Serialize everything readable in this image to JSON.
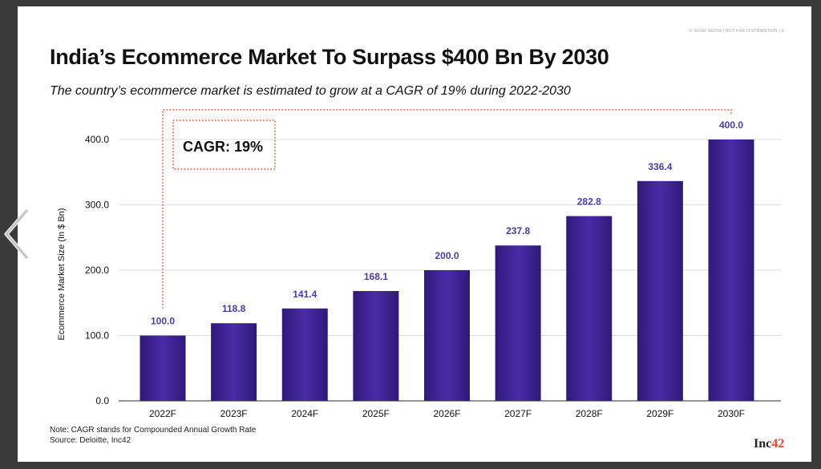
{
  "header": {
    "watermark": "© INC42 MEDIA | NOT FOR DISTRIBUTION | 8",
    "title": "India’s Ecommerce Market To Surpass $400 Bn By 2030",
    "subtitle": "The country’s ecommerce market is estimated to grow at a CAGR of 19% during 2022-2030"
  },
  "chart_data": {
    "type": "bar",
    "categories": [
      "2022F",
      "2023F",
      "2024F",
      "2025F",
      "2026F",
      "2027F",
      "2028F",
      "2029F",
      "2030F"
    ],
    "values": [
      100.0,
      118.8,
      141.4,
      168.1,
      200.0,
      237.8,
      282.8,
      336.4,
      400.0
    ],
    "value_labels": [
      "100.0",
      "118.8",
      "141.4",
      "168.1",
      "200.0",
      "237.8",
      "282.8",
      "336.4",
      "400.0"
    ],
    "ylabel": "Ecommerce Market Size (In $ Bn)",
    "ylim": [
      0,
      400
    ],
    "yticks": [
      "0.0",
      "100.0",
      "200.0",
      "300.0",
      "400.0"
    ],
    "grid": true,
    "annotation": "CAGR: 19%",
    "colors": {
      "bar": "#3d2496",
      "bar_dark": "#2e1a78",
      "label": "#4b3aa0",
      "dash": "#e8462f"
    }
  },
  "footer": {
    "note": "Note: CAGR stands for Compounded Annual Growth Rate",
    "source": "Source: Deloitte, Inc42",
    "logo_text": "Inc",
    "logo_accent": "42"
  }
}
